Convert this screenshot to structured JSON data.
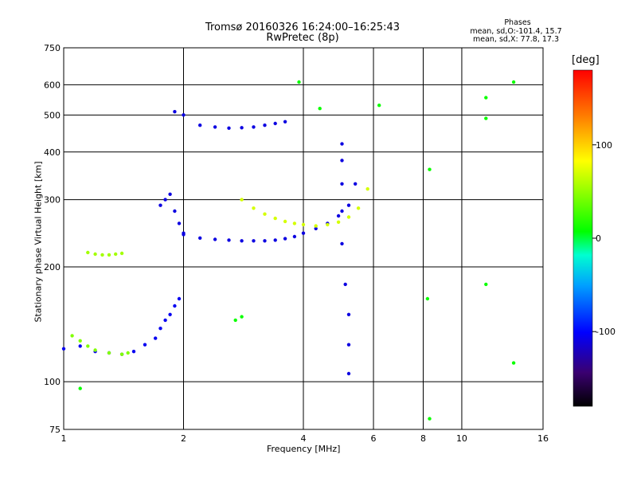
{
  "chart_data": {
    "type": "scatter",
    "title": "Tromsø 20160326 16:24:00–16:25:43",
    "subtitle": "RwPretec (8p)",
    "xlabel": "Frequency [MHz]",
    "ylabel": "Stationary phase Virtual Height [km]",
    "x_scale": "log",
    "y_scale": "log",
    "xlim": [
      1,
      16
    ],
    "ylim": [
      75,
      750
    ],
    "x_ticks": [
      1,
      2,
      4,
      6,
      8,
      10,
      16
    ],
    "x_tick_labels": [
      "1",
      "2",
      "4",
      "6",
      "8",
      "10",
      "16"
    ],
    "y_ticks": [
      75,
      100,
      200,
      300,
      400,
      500,
      600,
      750
    ],
    "y_tick_labels": [
      "75",
      "100",
      "200",
      "300",
      "400",
      "500",
      "600",
      "750"
    ],
    "grid": true,
    "stats": {
      "heading": "Phases",
      "line1": "mean, sd,O:-101.4, 15.7",
      "line2": "mean, sd,X:  77.8, 17.3"
    },
    "colorbar": {
      "label": "[deg]",
      "min": -180,
      "max": 180,
      "tick_values": [
        100,
        0,
        -100
      ],
      "tick_labels": [
        "100",
        "0",
        "-100"
      ]
    },
    "point_groups": [
      {
        "name": "E-region low O trace",
        "x": [
          1.0,
          1.1,
          1.2,
          1.3,
          1.4,
          1.5,
          1.6,
          1.7,
          1.75,
          1.8,
          1.85,
          1.9,
          1.95
        ],
        "y": [
          122,
          124,
          120,
          119,
          118,
          120,
          125,
          130,
          138,
          145,
          150,
          158,
          165
        ],
        "phase": -105
      },
      {
        "name": "E-region low X trace",
        "x": [
          1.05,
          1.1,
          1.15,
          1.2,
          1.3,
          1.4,
          1.45
        ],
        "y": [
          132,
          128,
          124,
          121,
          119,
          118,
          119
        ],
        "phase": 45
      },
      {
        "name": "F1 low X trace",
        "x": [
          1.15,
          1.2,
          1.25,
          1.3,
          1.35,
          1.4
        ],
        "y": [
          218,
          216,
          215,
          215,
          216,
          217
        ],
        "phase": 55
      },
      {
        "name": "F-region O cusp",
        "x": [
          1.75,
          1.8,
          1.85,
          1.9,
          1.95,
          2.0
        ],
        "y": [
          290,
          300,
          310,
          280,
          260,
          245
        ],
        "phase": -110
      },
      {
        "name": "F-region O main",
        "x": [
          2.0,
          2.2,
          2.4,
          2.6,
          2.8,
          3.0,
          3.2,
          3.4,
          3.6,
          3.8,
          4.0,
          4.3,
          4.6,
          4.9,
          5.2,
          5.4
        ],
        "y": [
          243,
          238,
          236,
          235,
          234,
          234,
          234,
          235,
          237,
          240,
          245,
          252,
          260,
          272,
          290,
          330
        ],
        "phase": -110
      },
      {
        "name": "F-region X trace",
        "x": [
          2.8,
          3.0,
          3.2,
          3.4,
          3.6,
          3.8,
          4.0,
          4.3,
          4.6,
          4.9,
          5.2,
          5.5,
          5.8
        ],
        "y": [
          300,
          285,
          275,
          268,
          263,
          260,
          258,
          256,
          258,
          262,
          270,
          285,
          320
        ],
        "phase": 70
      },
      {
        "name": "Upper layer O trace",
        "x": [
          1.9,
          2.0,
          2.2,
          2.4,
          2.6,
          2.8,
          3.0,
          3.2,
          3.4,
          3.6
        ],
        "y": [
          510,
          500,
          470,
          465,
          462,
          463,
          465,
          470,
          475,
          480
        ],
        "phase": -110
      },
      {
        "name": "Vertical streak ~5 MHz",
        "x": [
          5.0,
          5.0,
          5.0,
          5.0,
          5.0,
          5.1,
          5.2,
          5.2,
          5.2
        ],
        "y": [
          420,
          380,
          330,
          280,
          230,
          180,
          150,
          125,
          105
        ],
        "phase": -110
      },
      {
        "name": "Scattered returns",
        "x": [
          2.7,
          2.8,
          3.9,
          4.4,
          8.2,
          8.3,
          11.5,
          11.5,
          13.5,
          13.5,
          11.5,
          8.3,
          6.2,
          1.1
        ],
        "y": [
          145,
          148,
          610,
          520,
          165,
          360,
          555,
          490,
          610,
          112,
          180,
          80,
          530,
          96
        ],
        "phase": 10
      }
    ]
  }
}
